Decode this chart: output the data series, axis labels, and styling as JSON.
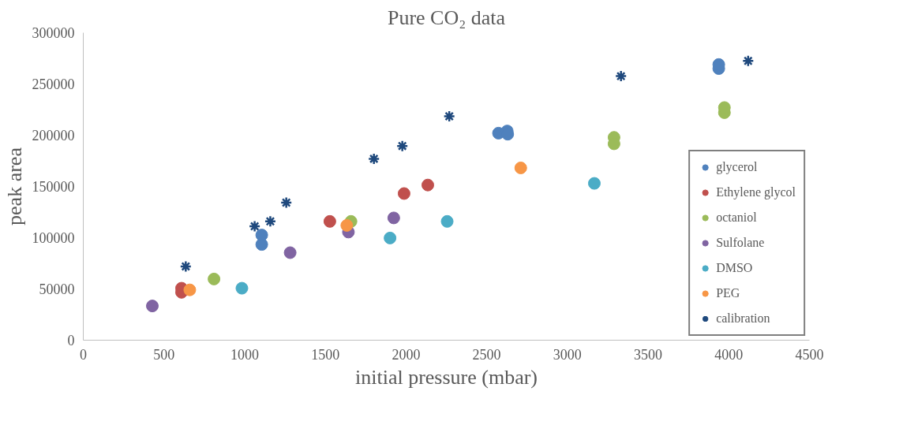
{
  "chart_data": {
    "type": "scatter",
    "title": "Pure CO₂ data",
    "xlabel": "initial pressure (mbar)",
    "ylabel": "peak area",
    "xlim": [
      0,
      4500
    ],
    "xticks": [
      0,
      500,
      1000,
      1500,
      2000,
      2500,
      3000,
      3500,
      4000,
      4500
    ],
    "ylim": [
      0,
      300000
    ],
    "yticks": [
      0,
      50000,
      100000,
      150000,
      200000,
      250000,
      300000
    ],
    "grid": false,
    "legend": "bottom right",
    "marker": "circle",
    "series": [
      {
        "name": "glycerol",
        "color": "#4f81bd",
        "x": [
          1106,
          1106,
          2573,
          2627,
          2630,
          3938,
          3938
        ],
        "values": [
          93400,
          102600,
          202000,
          204100,
          201000,
          265000,
          269000
        ]
      },
      {
        "name": "Ethylene glycol",
        "color": "#c0504d",
        "x": [
          609,
          609,
          1528,
          1988,
          2135
        ],
        "values": [
          50700,
          46700,
          115900,
          143100,
          151400
        ]
      },
      {
        "name": "octaniol",
        "color": "#9bbb59",
        "x": [
          810,
          1659,
          3289,
          3289,
          3973,
          3973
        ],
        "values": [
          59700,
          115900,
          197900,
          191600,
          222000,
          227000
        ]
      },
      {
        "name": "Sulfolane",
        "color": "#8064a2",
        "x": [
          428,
          1282,
          1643,
          1924
        ],
        "values": [
          33400,
          85400,
          105500,
          119300
        ]
      },
      {
        "name": "DMSO",
        "color": "#4bacc6",
        "x": [
          983,
          1901,
          2255,
          3167
        ],
        "values": [
          50700,
          99700,
          115900,
          153000
        ]
      },
      {
        "name": "PEG",
        "color": "#f79646",
        "x": [
          660,
          1633,
          2711
        ],
        "values": [
          49100,
          112000,
          168100
        ]
      },
      {
        "name": "calibration",
        "color": "#1f497d",
        "marker": "cross",
        "x": [
          635,
          1062,
          1159,
          1258,
          1801,
          1977,
          2268,
          3332,
          4120
        ],
        "values": [
          72000,
          111200,
          115900,
          134200,
          177000,
          189500,
          218500,
          257600,
          272500
        ]
      }
    ]
  }
}
